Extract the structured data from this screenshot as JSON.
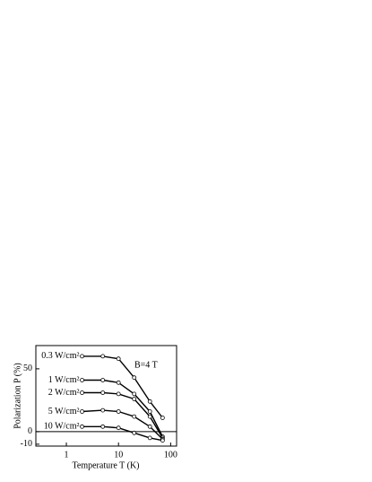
{
  "chart_data": {
    "type": "line",
    "x_label": "Temperature T (K)",
    "y_label": "Polarization P (%)",
    "annotation": "B=4 T",
    "log_x": true,
    "x": [
      2,
      5,
      10,
      20,
      40,
      70
    ],
    "series": [
      {
        "name": "0.3 W/cm²",
        "color": "#000000",
        "values": [
          60,
          60,
          58,
          43,
          24,
          11
        ]
      },
      {
        "name": "1 W/cm²",
        "color": "#000000",
        "values": [
          41,
          41,
          39,
          30,
          16,
          -4
        ]
      },
      {
        "name": "2 W/cm²",
        "color": "#000000",
        "values": [
          31,
          31,
          30,
          26,
          12,
          -5
        ]
      },
      {
        "name": "5 W/cm²",
        "color": "#000000",
        "values": [
          16,
          17,
          16,
          12,
          4,
          -6
        ]
      },
      {
        "name": "10 W/cm²",
        "color": "#000000",
        "values": [
          4,
          4,
          3,
          -1,
          -5,
          -7
        ]
      }
    ],
    "xlim": [
      0.26,
      130
    ],
    "xticks": [
      1,
      10,
      100
    ],
    "ylim": [
      -11.5,
      68.5
    ],
    "yticks": [
      -10,
      0,
      50
    ]
  }
}
